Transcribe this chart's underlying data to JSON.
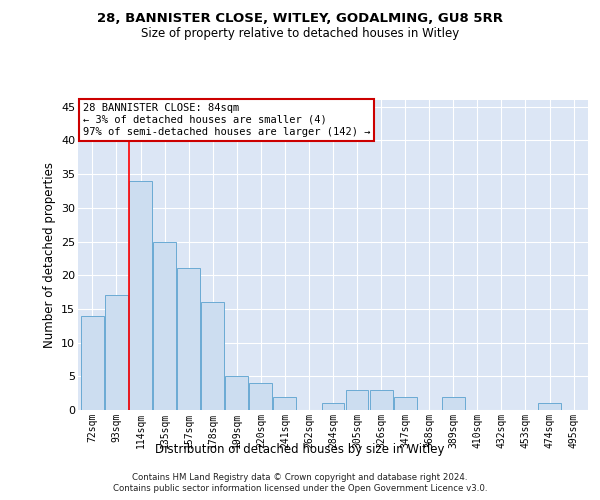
{
  "title1": "28, BANNISTER CLOSE, WITLEY, GODALMING, GU8 5RR",
  "title2": "Size of property relative to detached houses in Witley",
  "xlabel": "Distribution of detached houses by size in Witley",
  "ylabel": "Number of detached properties",
  "categories": [
    "72sqm",
    "93sqm",
    "114sqm",
    "135sqm",
    "157sqm",
    "178sqm",
    "199sqm",
    "220sqm",
    "241sqm",
    "262sqm",
    "284sqm",
    "305sqm",
    "326sqm",
    "347sqm",
    "368sqm",
    "389sqm",
    "410sqm",
    "432sqm",
    "453sqm",
    "474sqm",
    "495sqm"
  ],
  "values": [
    14,
    17,
    34,
    25,
    21,
    16,
    5,
    4,
    2,
    0,
    1,
    3,
    3,
    2,
    0,
    2,
    0,
    0,
    0,
    1,
    0
  ],
  "bar_color": "#ccddf0",
  "bar_edge_color": "#6aaad4",
  "red_line_x": 1.5,
  "annotation_text": "28 BANNISTER CLOSE: 84sqm\n← 3% of detached houses are smaller (4)\n97% of semi-detached houses are larger (142) →",
  "annotation_box_color": "#ffffff",
  "annotation_box_edge": "#cc0000",
  "ylim": [
    0,
    46
  ],
  "yticks": [
    0,
    5,
    10,
    15,
    20,
    25,
    30,
    35,
    40,
    45
  ],
  "background_color": "#dce6f5",
  "footer1": "Contains HM Land Registry data © Crown copyright and database right 2024.",
  "footer2": "Contains public sector information licensed under the Open Government Licence v3.0."
}
